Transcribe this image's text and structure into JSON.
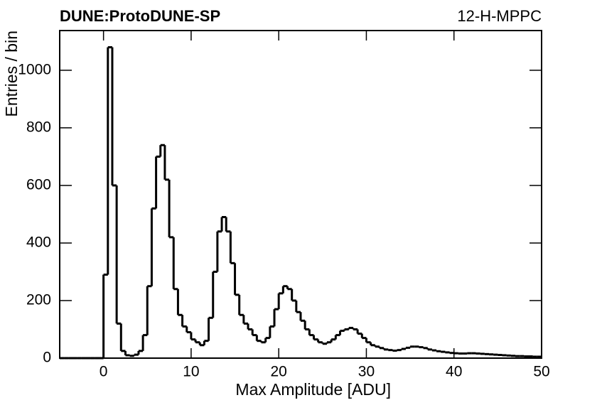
{
  "chart_data": {
    "type": "histogram",
    "title": "DUNE:ProtoDUNE-SP",
    "subtitle": "12-H-MPPC",
    "x_label": "Max Amplitude [ADU]",
    "y_label": "Entries / bin",
    "color": "#000000",
    "bins": [
      -5,
      -4.5,
      -4,
      -3.5,
      -3,
      -2.5,
      -2,
      -1.5,
      -1,
      -0.5,
      0,
      0.5,
      1,
      1.5,
      2,
      2.5,
      3,
      3.5,
      4,
      4.5,
      5,
      5.5,
      6,
      6.5,
      7,
      7.5,
      8,
      8.5,
      9,
      9.5,
      10,
      10.5,
      11,
      11.5,
      12,
      12.5,
      13,
      13.5,
      14,
      14.5,
      15,
      15.5,
      16,
      16.5,
      17,
      17.5,
      18,
      18.5,
      19,
      19.5,
      20,
      20.5,
      21,
      21.5,
      22,
      22.5,
      23,
      23.5,
      24,
      24.5,
      25,
      25.5,
      26,
      26.5,
      27,
      27.5,
      28,
      28.5,
      29,
      29.5,
      30,
      30.5,
      31,
      31.5,
      32,
      32.5,
      33,
      33.5,
      34,
      34.5,
      35,
      35.5,
      36,
      36.5,
      37,
      37.5,
      38,
      38.5,
      39,
      39.5,
      40,
      40.5,
      41,
      41.5,
      42,
      42.5,
      43,
      43.5,
      44,
      44.5,
      45,
      45.5,
      46,
      46.5,
      47,
      47.5,
      48,
      48.5,
      49,
      49.5,
      50
    ],
    "values": [
      0,
      0,
      0,
      0,
      0,
      0,
      0,
      0,
      0,
      0,
      290,
      1080,
      600,
      120,
      25,
      10,
      8,
      12,
      25,
      80,
      250,
      520,
      700,
      740,
      620,
      420,
      240,
      150,
      110,
      90,
      65,
      55,
      45,
      60,
      140,
      300,
      440,
      490,
      440,
      330,
      220,
      150,
      120,
      100,
      80,
      60,
      55,
      70,
      110,
      170,
      225,
      250,
      240,
      200,
      160,
      130,
      100,
      80,
      65,
      55,
      50,
      55,
      65,
      80,
      95,
      100,
      105,
      100,
      85,
      70,
      55,
      45,
      40,
      35,
      30,
      28,
      26,
      28,
      32,
      36,
      40,
      40,
      38,
      35,
      30,
      27,
      24,
      22,
      20,
      18,
      17,
      16,
      16,
      17,
      17,
      16,
      15,
      14,
      13,
      12,
      11,
      10,
      9,
      8,
      7,
      7,
      6,
      6,
      5,
      5
    ],
    "xlim": [
      -5,
      50
    ],
    "xticks": [
      0,
      10,
      20,
      30,
      40,
      50
    ],
    "ylim": [
      0,
      1138
    ],
    "yticks": [
      0,
      200,
      400,
      600,
      800,
      1000
    ]
  }
}
